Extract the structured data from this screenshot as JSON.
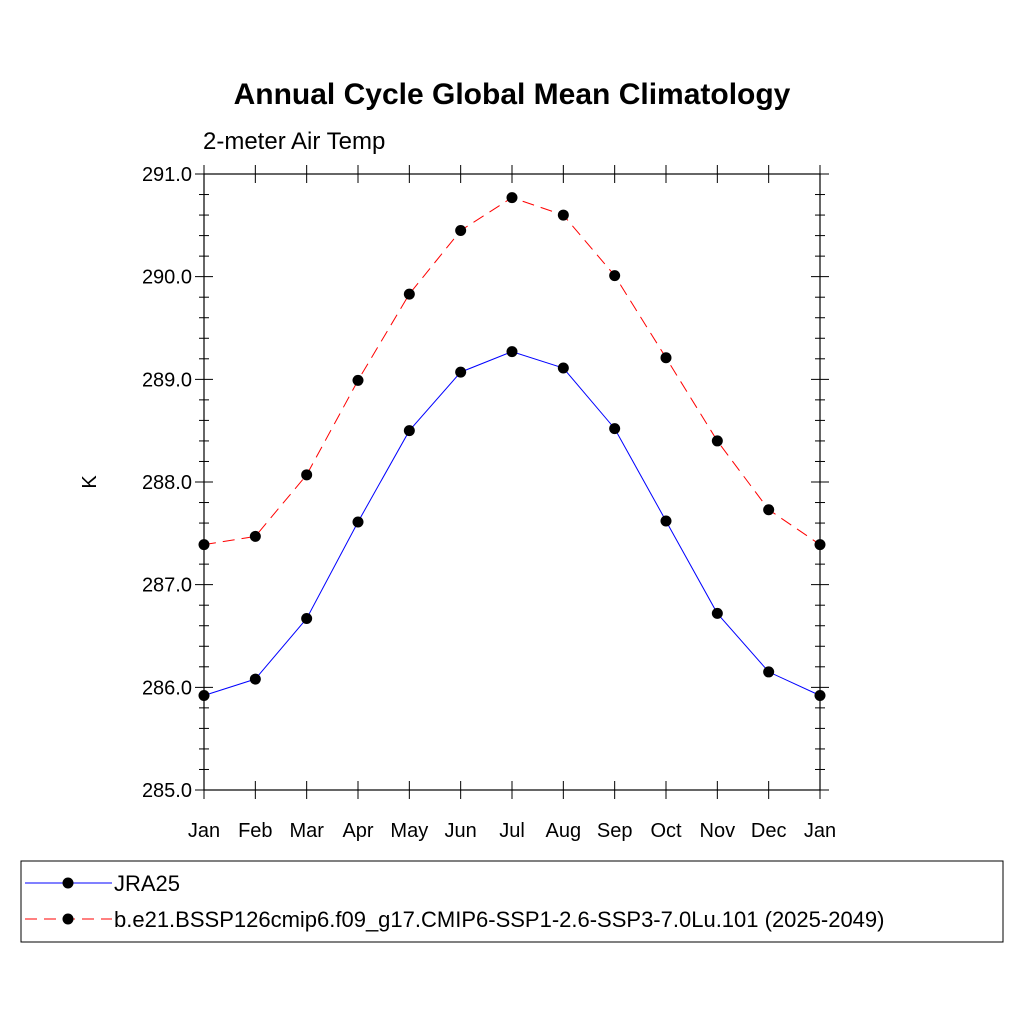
{
  "chart_data": {
    "type": "line",
    "title": "Annual Cycle Global Mean Climatology",
    "subtitle": "2-meter Air Temp",
    "ylabel": "K",
    "xlabel": "",
    "categories": [
      "Jan",
      "Feb",
      "Mar",
      "Apr",
      "May",
      "Jun",
      "Jul",
      "Aug",
      "Sep",
      "Oct",
      "Nov",
      "Dec",
      "Jan"
    ],
    "ylim": [
      285.0,
      291.0
    ],
    "yticks": [
      "285.0",
      "286.0",
      "287.0",
      "288.0",
      "289.0",
      "290.0",
      "291.0"
    ],
    "grid": false,
    "legend_position": "bottom",
    "series": [
      {
        "name": "JRA25",
        "color": "#0000ff",
        "dash": "solid",
        "marker": "filled-circle",
        "values": [
          285.92,
          286.08,
          286.67,
          287.61,
          288.5,
          289.07,
          289.27,
          289.11,
          288.52,
          287.62,
          286.72,
          286.15,
          285.92
        ]
      },
      {
        "name": "b.e21.BSSP126cmip6.f09_g17.CMIP6-SSP1-2.6-SSP3-7.0Lu.101 (2025-2049)",
        "color": "#ff0000",
        "dash": "dashed",
        "marker": "filled-circle",
        "values": [
          287.39,
          287.47,
          288.07,
          288.99,
          289.83,
          290.45,
          290.77,
          290.6,
          290.01,
          289.21,
          288.4,
          287.73,
          287.39
        ]
      }
    ]
  }
}
